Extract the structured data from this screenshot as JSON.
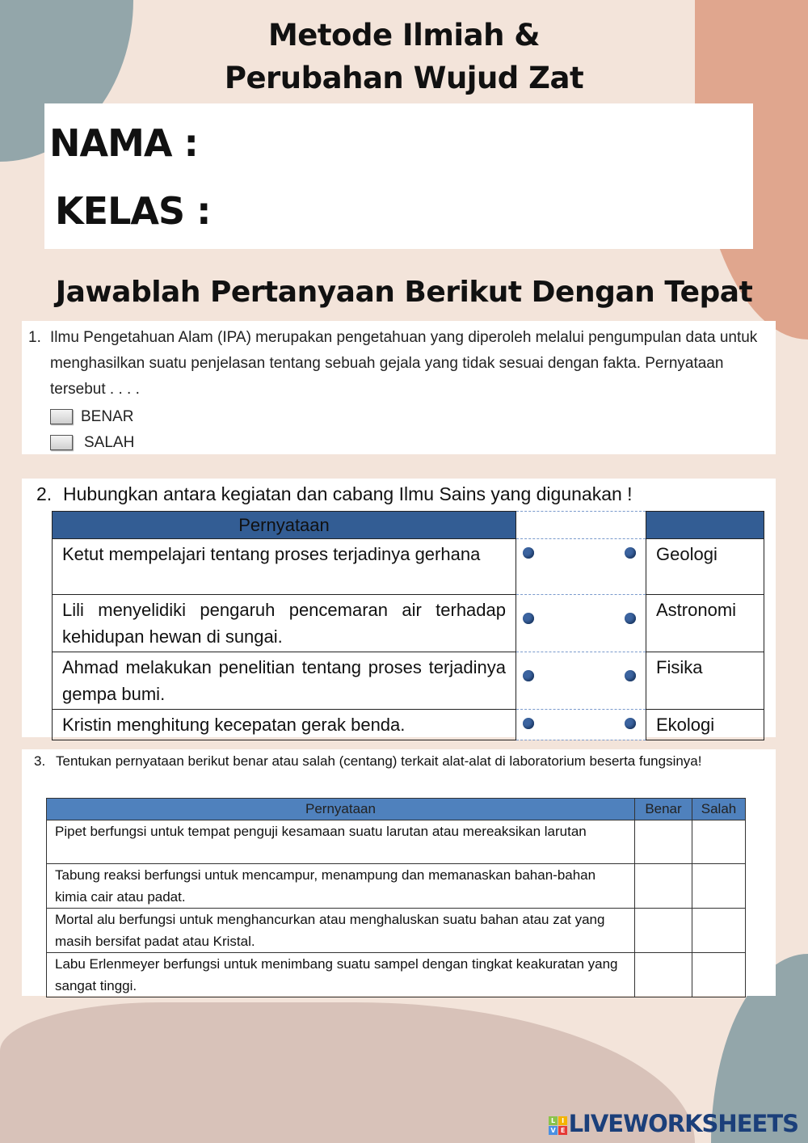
{
  "header": {
    "title_line1": "Metode Ilmiah &",
    "title_line2": "Perubahan Wujud Zat"
  },
  "identity": {
    "name_label": "NAMA :",
    "class_label": "KELAS :"
  },
  "instruction": "Jawablah Pertanyaan Berikut Dengan Tepat",
  "q1": {
    "number": "1.",
    "text": "Ilmu Pengetahuan Alam (IPA) merupakan pengetahuan yang diperoleh melalui pengumpulan data untuk menghasilkan suatu penjelasan tentang sebuah gejala yang tidak sesuai dengan fakta. Pernyataan tersebut . . . .",
    "options": [
      "BENAR",
      "SALAH"
    ]
  },
  "q2": {
    "number": "2.",
    "text": "Hubungkan antara kegiatan dan cabang Ilmu Sains yang digunakan !",
    "header": "Pernyataan",
    "statements": [
      "Ketut mempelajari tentang proses terjadinya gerhana",
      "Lili menyelidiki pengaruh pencemaran air terhadap kehidupan hewan di sungai.",
      "Ahmad melakukan penelitian tentang proses terjadinya gempa bumi.",
      "Kristin menghitung kecepatan gerak benda."
    ],
    "branches": [
      "Geologi",
      "Astronomi",
      "Fisika",
      "Ekologi"
    ]
  },
  "q3": {
    "number": "3.",
    "text": "Tentukan pernyataan berikut benar atau salah (centang) terkait alat-alat di laboratorium beserta fungsinya!",
    "headers": [
      "Pernyataan",
      "Benar",
      "Salah"
    ],
    "rows": [
      "Pipet berfungsi untuk tempat penguji kesamaan suatu larutan atau mereaksikan larutan",
      "Tabung reaksi berfungsi untuk mencampur, menampung dan memanaskan bahan-bahan kimia cair atau padat.",
      "Mortal alu berfungsi untuk menghancurkan atau menghaluskan suatu bahan atau zat yang masih bersifat padat atau Kristal.",
      "Labu Erlenmeyer berfungsi untuk menimbang suatu sampel dengan tingkat keakuratan yang sangat tinggi."
    ]
  },
  "logo": {
    "text": "LIVEWORKSHEETS",
    "badge": [
      "L",
      "I",
      "V",
      "E"
    ]
  },
  "colors": {
    "background": "#f3e4da",
    "blob_blue": "#93a6aa",
    "blob_salmon": "#e0a68e",
    "blob_pink": "#d8c2b9",
    "table_header_q2": "#335d94",
    "table_header_q3": "#4f81bd",
    "logo": "#1b3f7a"
  }
}
